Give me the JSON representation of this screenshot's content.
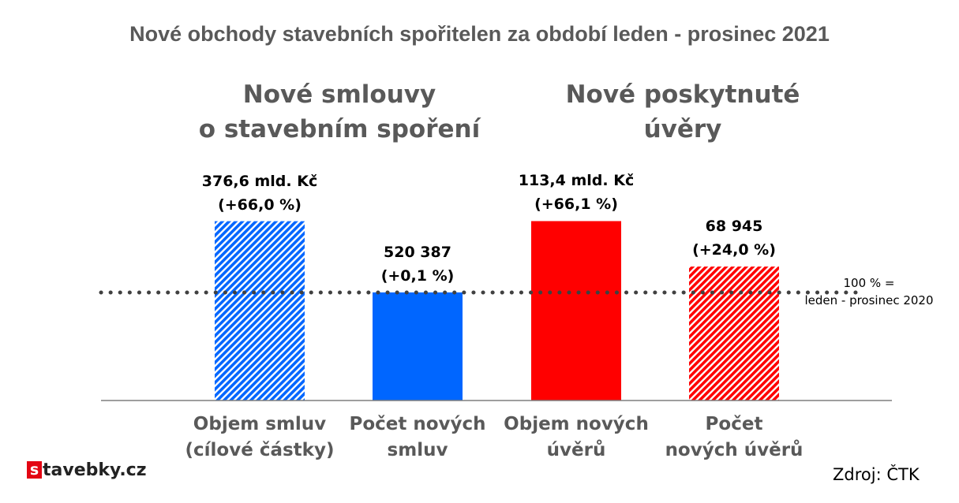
{
  "header": {
    "title": "Nové obchody stavebních spořitelen za období leden - prosinec 2021"
  },
  "groups": [
    {
      "line1": "Nové smlouvy",
      "line2": "o stavebním spoření"
    },
    {
      "line1": "Nové poskytnuté",
      "line2": "úvěry"
    }
  ],
  "reference": {
    "line1": "100 % =",
    "line2": "leden - prosinec 2020"
  },
  "logo": {
    "box_letter": "s",
    "text": "tavebky.cz"
  },
  "source": "Zdroj: ČTK",
  "colors": {
    "blue": "#0066ff",
    "red": "#ff0000",
    "text_gray": "#595959"
  },
  "chart_data": {
    "type": "bar",
    "baseline_percent": 100,
    "ylim": [
      0,
      185
    ],
    "categories": [
      "Objem smluv (cílové částky)",
      "Počet nových smluv",
      "Objem nových úvěrů",
      "Počet nových úvěrů"
    ],
    "values": [
      166.0,
      100.1,
      166.1,
      124.0
    ],
    "bars": [
      {
        "line1": "Objem smluv",
        "line2": "(cílové částky)",
        "value_line1": "376,6 mld. Kč",
        "value_line2": "(+66,0 %)",
        "color": "#0066ff",
        "pattern": "hatched"
      },
      {
        "line1": "Počet  nových",
        "line2": "smluv",
        "value_line1": "520 387",
        "value_line2": "(+0,1 %)",
        "color": "#0066ff",
        "pattern": "solid"
      },
      {
        "line1": "Objem nových",
        "line2": "úvěrů",
        "value_line1": "113,4 mld. Kč",
        "value_line2": "(+66,1 %)",
        "color": "#ff0000",
        "pattern": "solid"
      },
      {
        "line1": "Počet",
        "line2": "nových úvěrů",
        "value_line1": "68 945",
        "value_line2": "(+24,0 %)",
        "color": "#ff0000",
        "pattern": "hatched"
      }
    ]
  }
}
